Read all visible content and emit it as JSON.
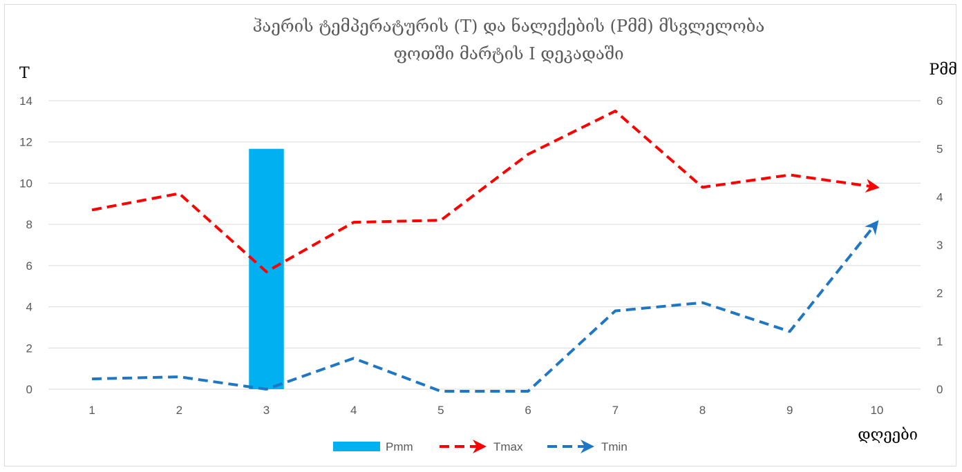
{
  "chart_data": {
    "type": "line",
    "title_line1": "ჰაერის ტემპერატურის (T) და ნალექების (Pმმ) მსვლელობა",
    "title_line2": "ფოთში მარტის I დეკადაში",
    "ylabel_left": "T",
    "ylabel_right": "Pმმ",
    "xlabel": "დღეები",
    "categories": [
      "1",
      "2",
      "3",
      "4",
      "5",
      "6",
      "7",
      "8",
      "9",
      "10"
    ],
    "y_left_ticks": [
      "0",
      "2",
      "4",
      "6",
      "8",
      "10",
      "12",
      "14"
    ],
    "y_right_ticks": [
      "0",
      "1",
      "2",
      "3",
      "4",
      "5",
      "6"
    ],
    "ylim_left": [
      0,
      14
    ],
    "ylim_right": [
      0,
      6
    ],
    "grid": true,
    "legend_position": "bottom",
    "series": [
      {
        "name": "Pmm",
        "kind": "bar",
        "axis": "right",
        "color": "#00b0f0",
        "values": [
          0,
          0,
          5.0,
          0,
          0,
          0,
          0,
          0,
          0,
          0
        ]
      },
      {
        "name": "Tmax",
        "kind": "line",
        "axis": "left",
        "color": "#ff0000",
        "dashed": true,
        "arrow_end": true,
        "values": [
          8.7,
          9.5,
          5.7,
          8.1,
          8.2,
          11.4,
          13.5,
          9.8,
          10.4,
          9.8
        ]
      },
      {
        "name": "Tmin",
        "kind": "line",
        "axis": "left",
        "color": "#1f77c4",
        "dashed": true,
        "arrow_end": true,
        "values": [
          0.5,
          0.6,
          0.0,
          1.5,
          -0.1,
          -0.1,
          3.8,
          4.2,
          2.8,
          8.1
        ]
      }
    ]
  }
}
